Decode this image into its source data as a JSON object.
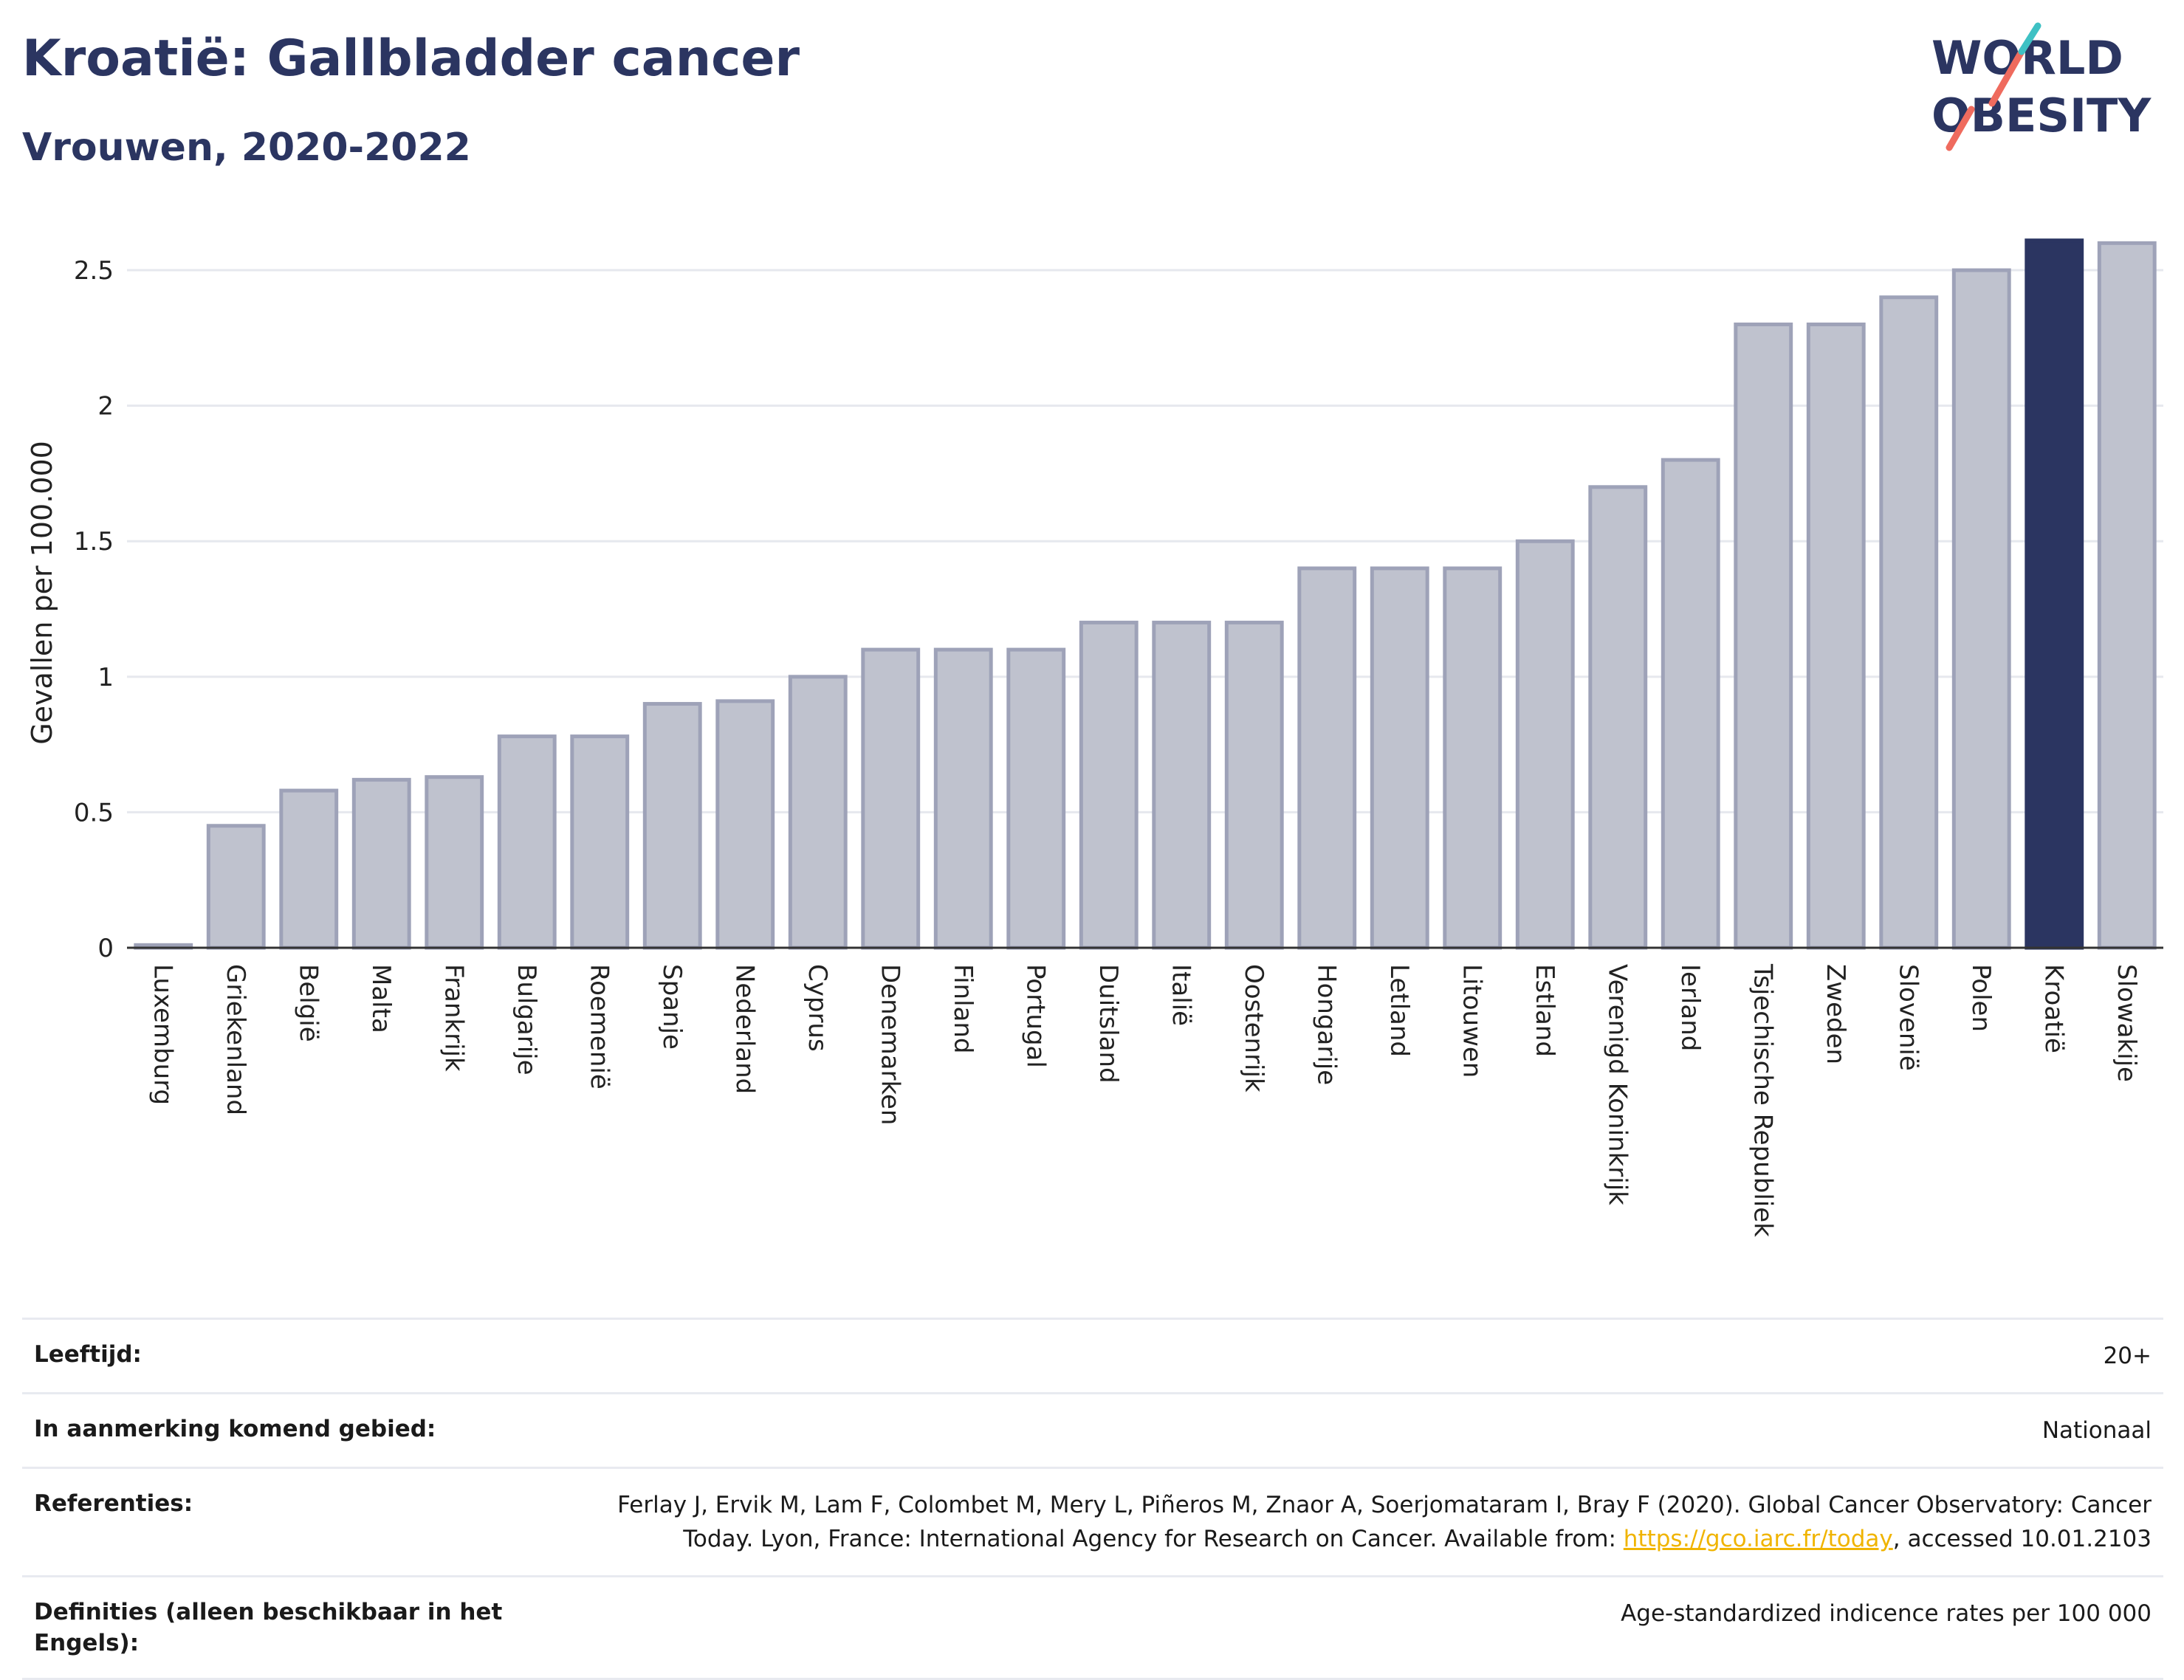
{
  "title": "Kroatië: Gallbladder cancer",
  "subtitle": "Vrouwen, 2020-2022",
  "logo": {
    "line1": "WORLD",
    "line2": "OBESITY",
    "accent_teal": "#3ec1c4",
    "accent_coral": "#ef6b5e",
    "text_color": "#2b3561"
  },
  "colors": {
    "bar_default": "#bfc2ce",
    "bar_stroke": "#9ea2b8",
    "bar_highlight": "#2b3561",
    "axis": "#333333",
    "grid": "#e6e8ee"
  },
  "chart_data": {
    "type": "bar",
    "title": "Kroatië: Gallbladder cancer",
    "subtitle": "Vrouwen, 2020-2022",
    "ylabel": "Gevallen per 100.000",
    "xlabel": "",
    "ylim": [
      0,
      2.62
    ],
    "yticks": [
      0,
      0.5,
      1,
      1.5,
      2,
      2.5
    ],
    "ytick_labels": [
      "0",
      "0.5",
      "1",
      "1.5",
      "2",
      "2.5"
    ],
    "highlight": "Kroatië",
    "grid": true,
    "categories": [
      "Luxemburg",
      "Griekenland",
      "België",
      "Malta",
      "Frankrijk",
      "Bulgarije",
      "Roemenië",
      "Spanje",
      "Nederland",
      "Cyprus",
      "Denemarken",
      "Finland",
      "Portugal",
      "Duitsland",
      "Italië",
      "Oostenrijk",
      "Hongarije",
      "Letland",
      "Litouwen",
      "Estland",
      "Verenigd Koninkrijk",
      "Ierland",
      "Tsjechische Republiek",
      "Zweden",
      "Slovenië",
      "Polen",
      "Kroatië",
      "Slowakije"
    ],
    "values": [
      0.01,
      0.45,
      0.58,
      0.62,
      0.63,
      0.78,
      0.78,
      0.9,
      0.91,
      1.0,
      1.1,
      1.1,
      1.1,
      1.2,
      1.2,
      1.2,
      1.4,
      1.4,
      1.4,
      1.5,
      1.7,
      1.8,
      2.3,
      2.3,
      2.4,
      2.5,
      2.61,
      2.6
    ]
  },
  "meta": {
    "age_label": "Leeftijd:",
    "age_value": "20+",
    "area_label": "In aanmerking komend gebied:",
    "area_value": "Nationaal",
    "ref_label": "Referenties:",
    "ref_text_1": "Ferlay J, Ervik M, Lam F, Colombet M, Mery L, Piñeros M, Znaor A, Soerjomataram I, Bray F (2020). Global Cancer Observatory: Cancer Today. Lyon, France: International Agency for Research on Cancer. Available from: ",
    "ref_link": "https://gco.iarc.fr/today",
    "ref_text_2": ", accessed 10.01.2103",
    "def_label": "Definities (alleen beschikbaar in het Engels):",
    "def_value": "Age-standardized indicence rates per 100 000"
  }
}
